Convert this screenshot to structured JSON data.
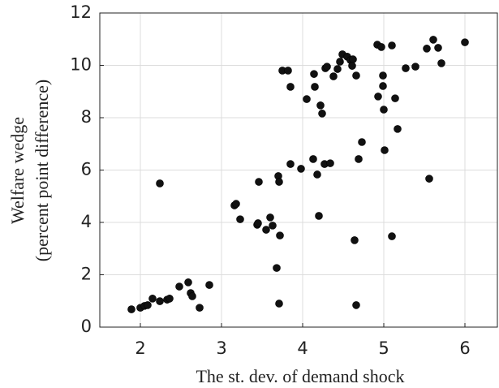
{
  "chart_data": {
    "type": "scatter",
    "xlabel": "The st. dev. of demand shock",
    "ylabel": [
      "Welfare wedge",
      "(percent point difference)"
    ],
    "xlim": [
      1.5,
      6.4
    ],
    "ylim": [
      0,
      12
    ],
    "xticks": [
      2,
      3,
      4,
      5,
      6
    ],
    "yticks": [
      0,
      2,
      4,
      6,
      8,
      10,
      12
    ],
    "grid": true,
    "color": "#111111",
    "x": [
      1.89,
      2.0,
      2.05,
      2.09,
      2.15,
      2.24,
      2.33,
      2.36,
      2.48,
      2.59,
      2.62,
      2.64,
      2.73,
      2.85,
      2.24,
      3.16,
      3.18,
      3.23,
      3.44,
      3.45,
      3.46,
      3.55,
      3.6,
      3.63,
      3.68,
      3.7,
      3.71,
      3.72,
      3.71,
      3.75,
      3.82,
      3.85,
      3.85,
      3.98,
      4.05,
      4.13,
      4.14,
      4.15,
      4.18,
      4.2,
      4.22,
      4.24,
      4.27,
      4.28,
      4.3,
      4.34,
      4.38,
      4.43,
      4.46,
      4.49,
      4.55,
      4.59,
      4.62,
      4.61,
      4.66,
      4.64,
      4.66,
      4.69,
      4.73,
      4.92,
      4.97,
      4.93,
      4.99,
      4.99,
      5.0,
      5.01,
      5.1,
      5.1,
      5.14,
      5.17,
      5.27,
      5.39,
      5.53,
      5.56,
      5.61,
      5.67,
      5.71,
      6.0
    ],
    "values": [
      0.68,
      0.74,
      0.81,
      0.84,
      1.09,
      0.99,
      1.05,
      1.09,
      1.55,
      1.71,
      1.3,
      1.18,
      0.74,
      1.61,
      5.49,
      4.65,
      4.71,
      4.12,
      3.91,
      3.97,
      5.55,
      3.72,
      4.19,
      3.88,
      2.26,
      5.77,
      5.55,
      3.5,
      0.9,
      9.8,
      9.8,
      9.18,
      6.23,
      6.05,
      8.71,
      6.42,
      9.67,
      9.18,
      5.83,
      4.25,
      8.47,
      8.16,
      6.23,
      9.89,
      9.95,
      6.26,
      9.58,
      9.86,
      10.14,
      10.42,
      10.33,
      10.2,
      10.23,
      9.98,
      9.61,
      3.32,
      0.84,
      6.42,
      7.07,
      10.79,
      10.7,
      8.81,
      9.61,
      9.21,
      8.31,
      6.76,
      10.76,
      3.47,
      8.74,
      7.57,
      9.89,
      9.95,
      10.64,
      5.67,
      10.98,
      10.67,
      10.08,
      10.88
    ]
  }
}
